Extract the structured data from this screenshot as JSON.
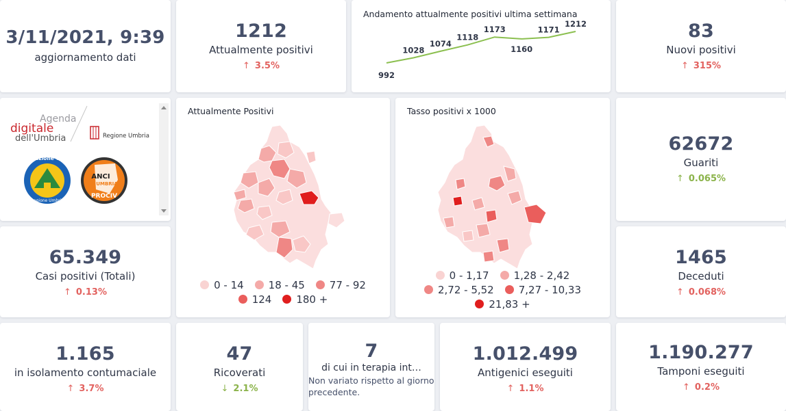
{
  "update": {
    "datetime": "3/11/2021, 9:39",
    "label": "aggiornamento dati"
  },
  "positivi": {
    "value": "1212",
    "label": "Attualmente positivi",
    "arrow": "↑",
    "change": "3.5%"
  },
  "trend": {
    "title": "Andamento attualmente positivi ultima settimana",
    "chart_data": {
      "type": "line",
      "values": [
        992,
        1028,
        1074,
        1118,
        1173,
        1160,
        1171,
        1212
      ],
      "labels": [
        "992",
        "1028",
        "1074",
        "1118",
        "1173",
        "1160",
        "1171",
        "1212"
      ],
      "color": "#8bbf4f"
    }
  },
  "nuovi": {
    "value": "83",
    "label": "Nuovi positivi",
    "arrow": "↑",
    "change": "315%"
  },
  "logos": {
    "agenda": {
      "line1": "Agenda",
      "line2": "digitale",
      "line3": "dell'Umbria"
    },
    "regione": "Regione Umbria",
    "protezione": "Protezione Civile",
    "protezione_sub": "Regione Umbria",
    "anci": {
      "line1": "ANCI",
      "line2": "UMBRIA",
      "line3": "PROCIV"
    }
  },
  "map1": {
    "title": "Attualmente Positivi",
    "legend": [
      {
        "label": "0 - 14",
        "color": "#f9d3d2"
      },
      {
        "label": "18 - 45",
        "color": "#f4aaa8"
      },
      {
        "label": "77 - 92",
        "color": "#ef8785"
      },
      {
        "label": "124",
        "color": "#ea5e5c"
      },
      {
        "label": "180 +",
        "color": "#e01e1e"
      }
    ]
  },
  "map2": {
    "title": "Tasso positivi x 1000",
    "legend": [
      {
        "label": "0 - 1,17",
        "color": "#f9d3d2"
      },
      {
        "label": "1,28 - 2,42",
        "color": "#f4aaa8"
      },
      {
        "label": "2,72 - 5,52",
        "color": "#ef8785"
      },
      {
        "label": "7,27 - 10,33",
        "color": "#ea5e5c"
      },
      {
        "label": "21,83 +",
        "color": "#e01e1e"
      }
    ]
  },
  "guariti": {
    "value": "62672",
    "label": "Guariti",
    "arrow": "↑",
    "change": "0.065%"
  },
  "casi": {
    "value": "65.349",
    "label": "Casi positivi (Totali)",
    "arrow": "↑",
    "change": "0.13%"
  },
  "deceduti": {
    "value": "1465",
    "label": "Deceduti",
    "arrow": "↑",
    "change": "0.068%"
  },
  "isolamento": {
    "value": "1.165",
    "label": "in isolamento contumaciale",
    "arrow": "↑",
    "change": "3.7%"
  },
  "ricoverati": {
    "value": "47",
    "label": "Ricoverati",
    "arrow": "↓",
    "change": "2.1%"
  },
  "terapia": {
    "value": "7",
    "label": "di cui in terapia int…",
    "note": "Non variato rispetto al giorno precedente."
  },
  "antigenici": {
    "value": "1.012.499",
    "label": "Antigenici eseguiti",
    "arrow": "↑",
    "change": "1.1%"
  },
  "tamponi": {
    "value": "1.190.277",
    "label": "Tamponi eseguiti",
    "arrow": "↑",
    "change": "0.2%"
  }
}
